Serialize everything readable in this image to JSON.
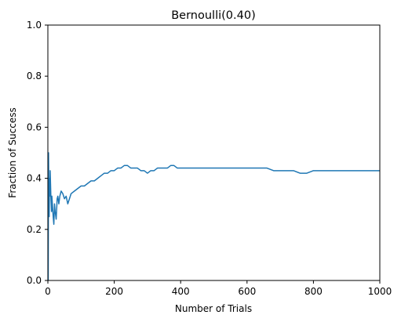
{
  "chart_data": {
    "type": "line",
    "title": "Bernoulli(0.40)",
    "xlabel": "Number of Trials",
    "ylabel": "Fraction of Success",
    "xlim": [
      0,
      1000
    ],
    "ylim": [
      0,
      1
    ],
    "grid": false,
    "x_ticks": [
      "0",
      "200",
      "400",
      "600",
      "800",
      "1000"
    ],
    "y_ticks": [
      "0.0",
      "0.2",
      "0.4",
      "0.6",
      "0.8",
      "1.0"
    ],
    "line_color": "#1f77b4",
    "series": [
      {
        "x": [
          1,
          2,
          3,
          4,
          5,
          6,
          7,
          8,
          9,
          10,
          11,
          12,
          14,
          16,
          18,
          20,
          22,
          25,
          28,
          30,
          33,
          36,
          40,
          45,
          50,
          55,
          60,
          70,
          80,
          90,
          100,
          110,
          120,
          130,
          140,
          150,
          160,
          170,
          180,
          190,
          200,
          210,
          220,
          230,
          240,
          250,
          260,
          270,
          280,
          290,
          300,
          310,
          320,
          330,
          340,
          350,
          360,
          370,
          380,
          390,
          400,
          420,
          440,
          460,
          480,
          500,
          520,
          540,
          560,
          580,
          600,
          620,
          640,
          660,
          680,
          700,
          720,
          740,
          760,
          780,
          800,
          820,
          840,
          860,
          880,
          900,
          920,
          940,
          960,
          980,
          1000
        ],
        "y": [
          0.0,
          0.5,
          0.33,
          0.25,
          0.4,
          0.33,
          0.43,
          0.38,
          0.33,
          0.3,
          0.27,
          0.33,
          0.29,
          0.25,
          0.22,
          0.3,
          0.27,
          0.24,
          0.32,
          0.33,
          0.3,
          0.33,
          0.35,
          0.34,
          0.32,
          0.33,
          0.3,
          0.34,
          0.35,
          0.36,
          0.37,
          0.37,
          0.38,
          0.39,
          0.39,
          0.4,
          0.41,
          0.42,
          0.42,
          0.43,
          0.43,
          0.44,
          0.44,
          0.45,
          0.45,
          0.44,
          0.44,
          0.44,
          0.43,
          0.43,
          0.42,
          0.43,
          0.43,
          0.44,
          0.44,
          0.44,
          0.44,
          0.45,
          0.45,
          0.44,
          0.44,
          0.44,
          0.44,
          0.44,
          0.44,
          0.44,
          0.44,
          0.44,
          0.44,
          0.44,
          0.44,
          0.44,
          0.44,
          0.44,
          0.43,
          0.43,
          0.43,
          0.43,
          0.42,
          0.42,
          0.43,
          0.43,
          0.43,
          0.43,
          0.43,
          0.43,
          0.43,
          0.43,
          0.43,
          0.43,
          0.43
        ]
      }
    ]
  }
}
